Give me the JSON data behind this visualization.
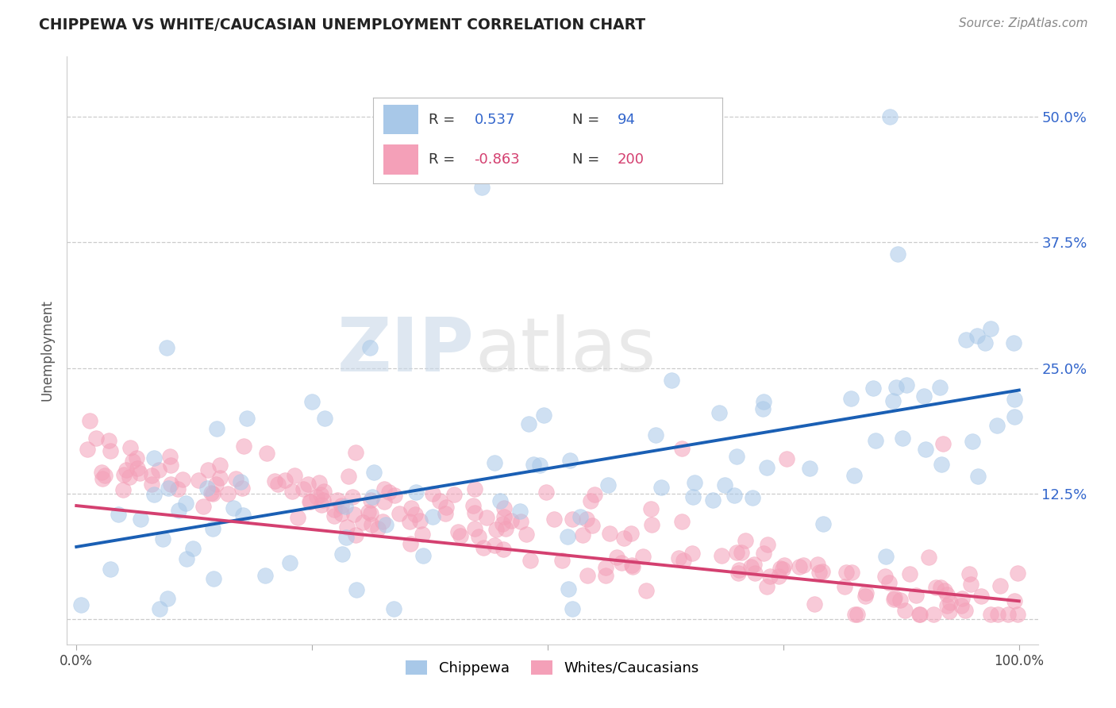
{
  "title": "CHIPPEWA VS WHITE/CAUCASIAN UNEMPLOYMENT CORRELATION CHART",
  "source": "Source: ZipAtlas.com",
  "ylabel": "Unemployment",
  "y_ticks": [
    0.0,
    0.125,
    0.25,
    0.375,
    0.5
  ],
  "y_tick_labels": [
    "",
    "12.5%",
    "25.0%",
    "37.5%",
    "50.0%"
  ],
  "chippewa_color": "#a8c8e8",
  "white_color": "#f4a0b8",
  "blue_line_color": "#1a5fb4",
  "pink_line_color": "#d44070",
  "watermark_zip": "ZIP",
  "watermark_atlas": "atlas",
  "background_color": "#ffffff",
  "tick_color": "#3366cc",
  "title_color": "#222222",
  "source_color": "#888888"
}
